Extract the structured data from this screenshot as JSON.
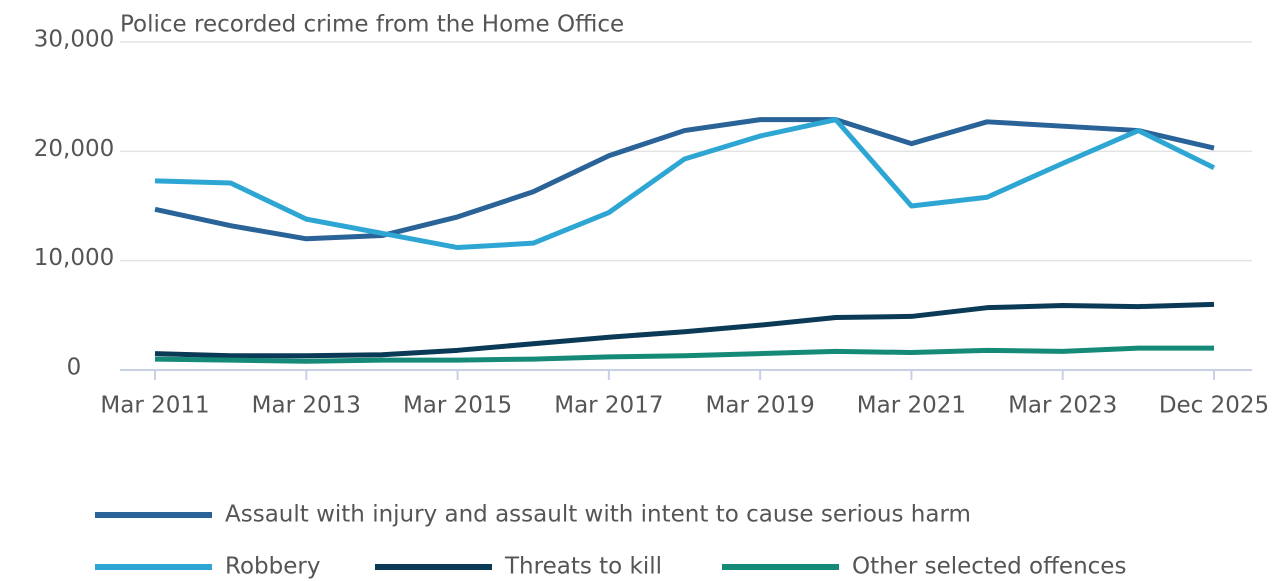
{
  "chart_data": {
    "type": "line",
    "title": "Police recorded crime from the Home Office",
    "categories": [
      "Mar 2011",
      null,
      "Mar 2013",
      null,
      "Mar 2015",
      null,
      "Mar 2017",
      null,
      "Mar 2019",
      null,
      "Mar 2021",
      null,
      "Mar 2023",
      null,
      "Dec 2025"
    ],
    "series": [
      {
        "name": "Assault with injury and assault with intent to cause serious harm",
        "color": "#2a6398",
        "values": [
          14700,
          13200,
          12000,
          12300,
          14000,
          16300,
          19600,
          21900,
          22900,
          22900,
          20700,
          22700,
          22300,
          21900,
          20300
        ]
      },
      {
        "name": "Robbery",
        "color": "#2ea6d4",
        "values": [
          17300,
          17100,
          13800,
          12500,
          11200,
          11600,
          14400,
          19300,
          21400,
          22900,
          15000,
          15800,
          18900,
          21900,
          18500
        ]
      },
      {
        "name": "Threats to kill",
        "color": "#0b3a56",
        "values": [
          1500,
          1300,
          1300,
          1400,
          1800,
          2400,
          3000,
          3500,
          4100,
          4800,
          4900,
          5700,
          5900,
          5800,
          6000
        ]
      },
      {
        "name": "Other selected offences",
        "color": "#168a78",
        "values": [
          1000,
          900,
          800,
          900,
          900,
          1000,
          1200,
          1300,
          1500,
          1700,
          1600,
          1800,
          1700,
          2000,
          2000
        ]
      }
    ],
    "ylim": [
      0,
      30000
    ],
    "yticks": [
      0,
      {
        "value": 10000,
        "label": "10,000"
      },
      {
        "value": 20000,
        "label": "20,000"
      },
      {
        "value": 30000,
        "label": "30,000"
      }
    ],
    "grid": true
  }
}
